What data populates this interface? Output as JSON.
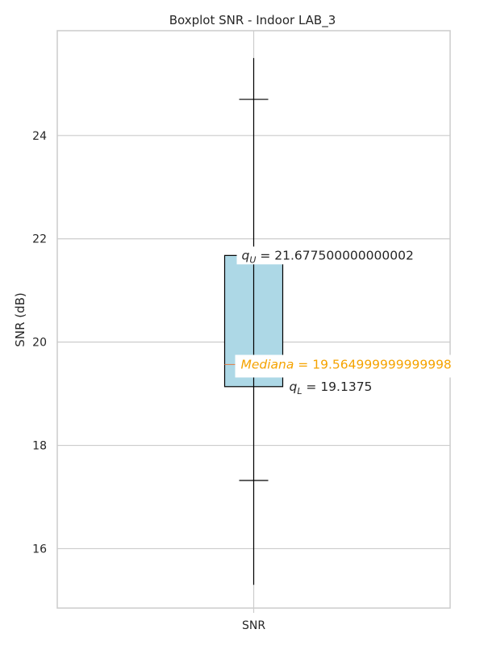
{
  "chart_data": {
    "type": "boxplot",
    "title": "Boxplot SNR - Indoor LAB_3",
    "ylabel": "SNR (dB)",
    "xlabel": "",
    "categories": [
      "SNR"
    ],
    "ylim": [
      14.85,
      26.03
    ],
    "yticks": [
      16,
      18,
      20,
      22,
      24
    ],
    "grid": true,
    "colors": {
      "box_fill": "#add8e6",
      "box_edge": "#000000",
      "median_line": "#dd8452",
      "median_text": "#f5a300",
      "text": "#262626",
      "grid": "#cccccc",
      "frame": "#cccccc"
    },
    "box": {
      "q1": 19.1375,
      "median": 19.564999999999998,
      "q3": 21.677500000000002,
      "whisker_low": 15.3,
      "whisker_high": 25.5,
      "cap_low": 17.32,
      "cap_high": 24.7
    },
    "annotations": {
      "qu": {
        "symbol": "q",
        "sub": "U",
        "eq": " = ",
        "value": "21.677500000000002"
      },
      "median": {
        "word": "Mediana",
        "eq": " = ",
        "value": "19.564999999999998"
      },
      "ql": {
        "symbol": "q",
        "sub": "L",
        "eq": " = ",
        "value": "19.1375"
      }
    }
  }
}
